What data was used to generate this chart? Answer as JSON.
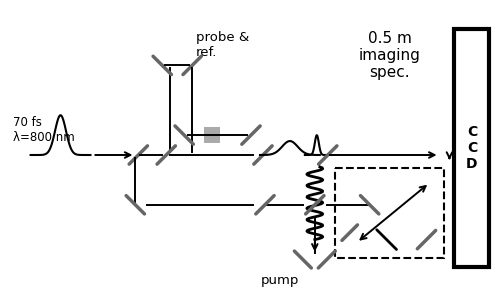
{
  "bg_color": "#ffffff",
  "fig_width": 5.0,
  "fig_height": 3.08,
  "dpi": 100,
  "labels": {
    "laser": "70 fs\nλ=800 nm",
    "probe_ref": "probe &\nref.",
    "spec": "0.5 m\nimaging\nspec.",
    "ccd": "C\nC\nD",
    "pump": "pump"
  }
}
